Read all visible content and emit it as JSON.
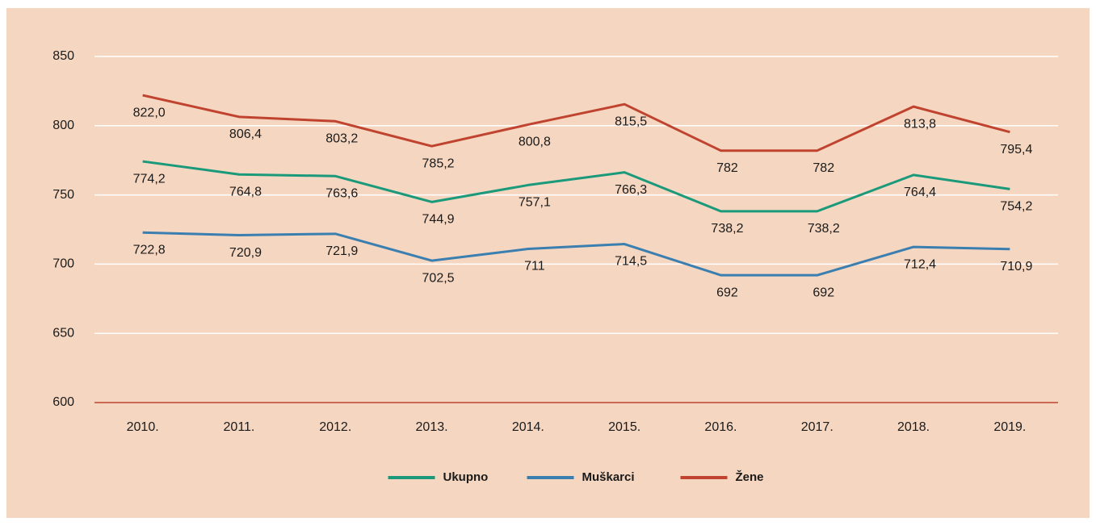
{
  "chart_data": {
    "type": "line",
    "categories": [
      "2010.",
      "2011.",
      "2012.",
      "2013.",
      "2014.",
      "2015.",
      "2016.",
      "2017.",
      "2018.",
      "2019."
    ],
    "series": [
      {
        "name": "Ukupno",
        "color": "#1a9a7a",
        "values": [
          774.2,
          764.8,
          763.6,
          744.9,
          757.1,
          766.3,
          738.2,
          738.2,
          764.4,
          754.2
        ],
        "value_labels": [
          "774,2",
          "764,8",
          "763,6",
          "744,9",
          "757,1",
          "766,3",
          "738,2",
          "738,2",
          "764,4",
          "754,2"
        ]
      },
      {
        "name": "Muškarci",
        "color": "#3a7fb0",
        "values": [
          722.8,
          720.9,
          721.9,
          702.5,
          711,
          714.5,
          692,
          692,
          712.4,
          710.9
        ],
        "value_labels": [
          "722,8",
          "720,9",
          "721,9",
          "702,5",
          "711",
          "714,5",
          "692",
          "692",
          "712,4",
          "710,9"
        ]
      },
      {
        "name": "Žene",
        "color": "#c0432f",
        "values": [
          822.0,
          806.4,
          803.2,
          785.2,
          800.8,
          815.5,
          782,
          782,
          813.8,
          795.4
        ],
        "value_labels": [
          "822,0",
          "806,4",
          "803,2",
          "785,2",
          "800,8",
          "815,5",
          "782",
          "782",
          "813,8",
          "795,4"
        ]
      }
    ],
    "ylim": [
      600,
      850
    ],
    "yticks": [
      600,
      650,
      700,
      750,
      800,
      850
    ],
    "grid": true,
    "legend": "bottom"
  }
}
